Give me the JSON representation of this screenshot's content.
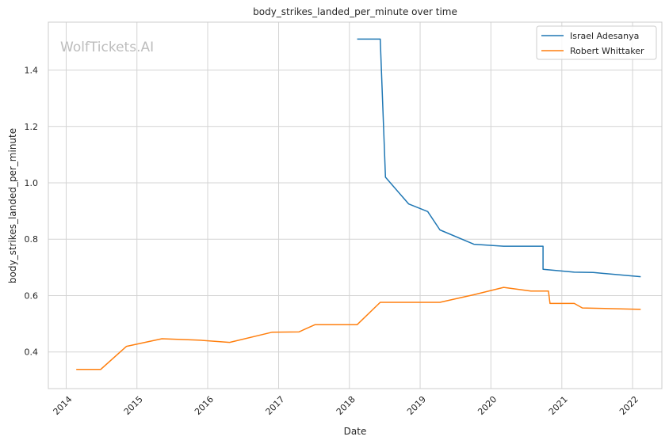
{
  "chart_data": {
    "type": "line",
    "title": "body_strikes_landed_per_minute over time",
    "xlabel": "Date",
    "ylabel": "body_strikes_landed_per_minute",
    "watermark": "WolfTickets.AI",
    "xlim": [
      "2013-10-01",
      "2022-06-01"
    ],
    "ylim": [
      0.27,
      1.57
    ],
    "x_ticks": [
      "2014",
      "2015",
      "2016",
      "2017",
      "2018",
      "2019",
      "2020",
      "2021",
      "2022"
    ],
    "y_ticks": [
      "0.4",
      "0.6",
      "0.8",
      "1.0",
      "1.2",
      "1.4"
    ],
    "grid": true,
    "legend_position": "top-right",
    "series": [
      {
        "name": "Israel Adesanya",
        "color": "#1f77b4",
        "points": [
          [
            "2018-02-10",
            1.51
          ],
          [
            "2018-06-09",
            1.51
          ],
          [
            "2018-07-06",
            1.02
          ],
          [
            "2018-11-03",
            0.925
          ],
          [
            "2019-02-09",
            0.898
          ],
          [
            "2019-04-13",
            0.833
          ],
          [
            "2019-10-05",
            0.782
          ],
          [
            "2020-03-07",
            0.775
          ],
          [
            "2020-09-26",
            0.775
          ],
          [
            "2020-09-26",
            0.693
          ],
          [
            "2021-03-06",
            0.683
          ],
          [
            "2021-06-12",
            0.682
          ],
          [
            "2022-02-12",
            0.667
          ]
        ]
      },
      {
        "name": "Robert Whittaker",
        "color": "#ff7f0e",
        "points": [
          [
            "2014-02-22",
            0.338
          ],
          [
            "2014-06-28",
            0.338
          ],
          [
            "2014-11-08",
            0.42
          ],
          [
            "2015-05-10",
            0.447
          ],
          [
            "2015-11-14",
            0.442
          ],
          [
            "2016-04-23",
            0.434
          ],
          [
            "2016-11-27",
            0.47
          ],
          [
            "2017-04-15",
            0.471
          ],
          [
            "2017-07-08",
            0.497
          ],
          [
            "2018-02-10",
            0.497
          ],
          [
            "2018-06-09",
            0.576
          ],
          [
            "2019-04-13",
            0.576
          ],
          [
            "2019-10-05",
            0.603
          ],
          [
            "2020-03-07",
            0.629
          ],
          [
            "2020-07-25",
            0.616
          ],
          [
            "2020-10-24",
            0.616
          ],
          [
            "2020-11-01",
            0.572
          ],
          [
            "2021-03-06",
            0.572
          ],
          [
            "2021-04-17",
            0.556
          ],
          [
            "2022-02-12",
            0.551
          ]
        ]
      }
    ]
  }
}
